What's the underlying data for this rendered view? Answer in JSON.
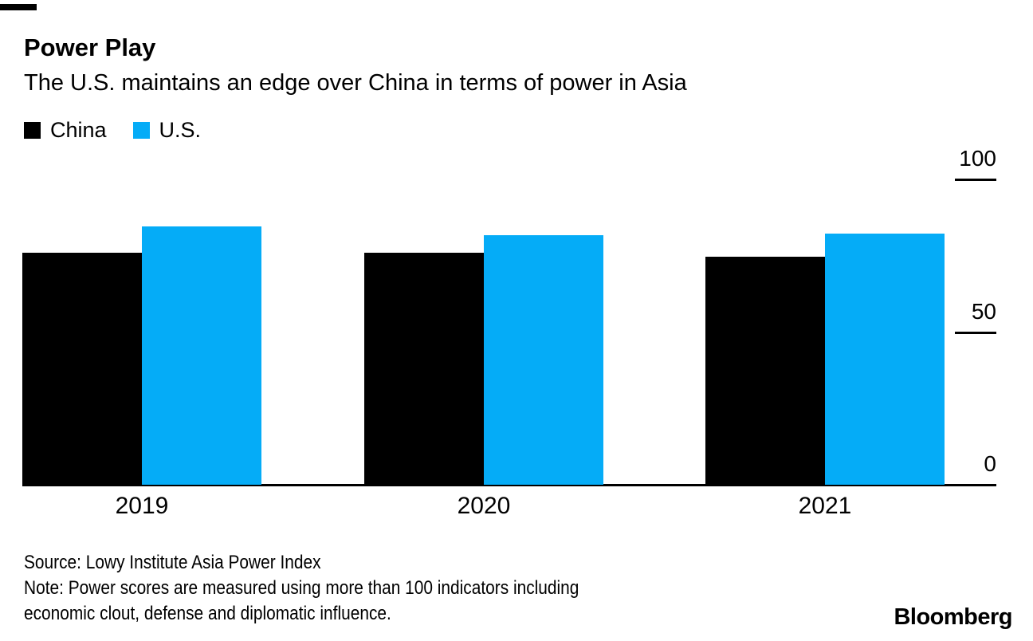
{
  "header": {
    "title": "Power Play",
    "subtitle": "The U.S. maintains an edge over China in terms of power in Asia"
  },
  "legend": [
    {
      "label": "China",
      "color": "#000000"
    },
    {
      "label": "U.S.",
      "color": "#05ACF7"
    }
  ],
  "chart_data": {
    "type": "bar",
    "title": "Power Play",
    "subtitle": "The U.S. maintains an edge over China in terms of power in Asia",
    "categories": [
      "2019",
      "2020",
      "2021"
    ],
    "series": [
      {
        "name": "China",
        "color": "#000000",
        "values": [
          75.9,
          76.1,
          74.6
        ]
      },
      {
        "name": "U.S.",
        "color": "#05ACF7",
        "values": [
          84.5,
          81.6,
          82.2
        ]
      }
    ],
    "xlabel": "",
    "ylabel": "",
    "ylim": [
      0,
      100
    ],
    "yticks": [
      100,
      50,
      0
    ],
    "grid": false,
    "legend_position": "top-left",
    "y_axis_side": "right"
  },
  "footer": {
    "source": "Source: Lowy Institute Asia Power Index",
    "note_lines": [
      "Note: Power scores are measured using more than 100 indicators including",
      "economic clout, defense and diplomatic influence."
    ],
    "brand": "Bloomberg"
  }
}
